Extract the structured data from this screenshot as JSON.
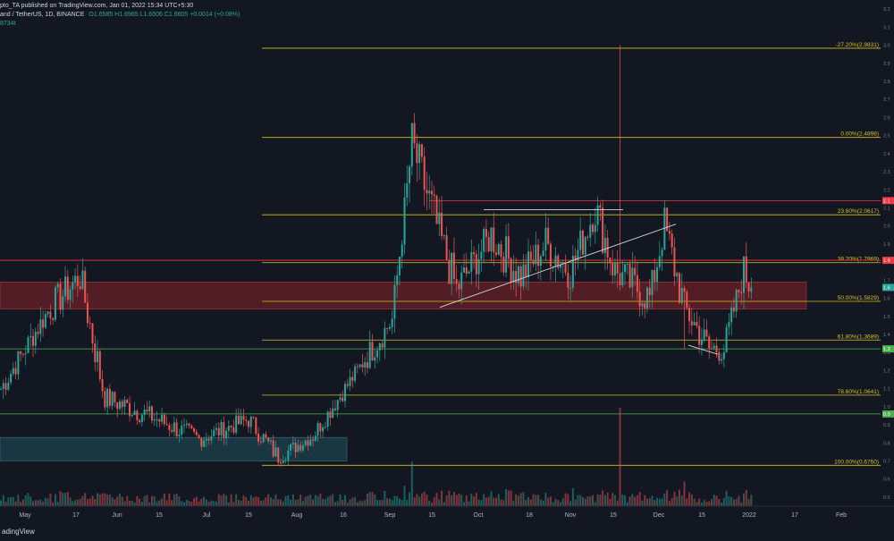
{
  "header": {
    "publisher": "pto_TA published on TradingView.com, Jan 01, 2022 15:34 UTC+5:30",
    "symbol_line": "and / TetherUS, 1D, BINANCE",
    "ohlc": "O1.6585 H1.6965 L1.6506 C1.6605 +0.0014 (+0.08%)",
    "volume": "8734t"
  },
  "footer": {
    "brand": "adingView"
  },
  "colors": {
    "background": "#131722",
    "up": "#26a69a",
    "down": "#ef5350",
    "fib": "#d4c21e",
    "resistance": "#f23645",
    "support": "#4caf50",
    "trendline": "#d1d4dc",
    "zone_red": "#5a1e26",
    "zone_teal": "#1b3a45"
  },
  "chart_data": {
    "type": "candlestick",
    "x_ticks": [
      "May",
      "17",
      "Jun",
      "15",
      "Jul",
      "15",
      "Aug",
      "16",
      "Sep",
      "15",
      "Oct",
      "18",
      "Nov",
      "15",
      "Dec",
      "15",
      "2022",
      "17",
      "Feb"
    ],
    "y_ticks": [
      "3.2",
      "3.1",
      "3.0",
      "2.9",
      "2.8",
      "2.7",
      "2.6",
      "2.5",
      "2.4",
      "2.3",
      "2.2",
      "2.1",
      "2.0",
      "1.9",
      "1.8",
      "1.7",
      "1.6",
      "1.5",
      "1.4",
      "1.3",
      "1.2",
      "1.1",
      "1.0",
      "0.9",
      "0.8",
      "0.7",
      "0.6",
      "0.5"
    ],
    "ylim": [
      0.45,
      3.25
    ],
    "fib_levels": [
      {
        "label": "-27.20%(2.9831)",
        "value": 2.9831
      },
      {
        "label": "0.00%(2.4898)",
        "value": 2.4898
      },
      {
        "label": "23.60%(2.0617)",
        "value": 2.0617
      },
      {
        "label": "38.20%(1.7969)",
        "value": 1.7969
      },
      {
        "label": "50.00%(1.5829)",
        "value": 1.5829
      },
      {
        "label": "61.80%(1.3689)",
        "value": 1.3689
      },
      {
        "label": "78.60%(1.0641)",
        "value": 1.0641
      },
      {
        "label": "100.00%(0.6760)",
        "value": 0.676
      }
    ],
    "horizontal_lines": [
      {
        "value": 2.14,
        "color": "#f23645",
        "tag": "2.1"
      },
      {
        "value": 1.81,
        "color": "#f23645",
        "tag": "1.8"
      },
      {
        "value": 1.32,
        "color": "#4caf50",
        "tag": "1.3"
      },
      {
        "value": 0.96,
        "color": "#4caf50",
        "tag": "0.9"
      }
    ],
    "price_tags": [
      {
        "value": 1.66,
        "color": "#26a69a",
        "tag": "1.6"
      }
    ],
    "zones": [
      {
        "name": "supply-zone",
        "from": 1.54,
        "to": 1.69,
        "color": "#5a1e26"
      },
      {
        "name": "demand-zone",
        "from": 0.7,
        "to": 0.83,
        "color": "#1b3a45"
      }
    ],
    "anchors": [
      {
        "i": 0,
        "v": 1.1
      },
      {
        "i": 20,
        "v": 1.55
      },
      {
        "i": 32,
        "v": 1.72
      },
      {
        "i": 42,
        "v": 1.05
      },
      {
        "i": 60,
        "v": 0.95
      },
      {
        "i": 80,
        "v": 0.82
      },
      {
        "i": 100,
        "v": 0.93
      },
      {
        "i": 112,
        "v": 0.72
      },
      {
        "i": 126,
        "v": 0.84
      },
      {
        "i": 148,
        "v": 1.28
      },
      {
        "i": 158,
        "v": 1.48
      },
      {
        "i": 166,
        "v": 2.45
      },
      {
        "i": 176,
        "v": 2.0
      },
      {
        "i": 184,
        "v": 1.65
      },
      {
        "i": 198,
        "v": 1.95
      },
      {
        "i": 210,
        "v": 1.72
      },
      {
        "i": 220,
        "v": 1.9
      },
      {
        "i": 230,
        "v": 1.75
      },
      {
        "i": 240,
        "v": 2.1
      },
      {
        "i": 248,
        "v": 1.75
      },
      {
        "i": 262,
        "v": 1.6
      },
      {
        "i": 268,
        "v": 2.0
      },
      {
        "i": 276,
        "v": 1.55
      },
      {
        "i": 286,
        "v": 1.32
      },
      {
        "i": 292,
        "v": 1.32
      },
      {
        "i": 300,
        "v": 1.75
      },
      {
        "i": 303,
        "v": 1.66
      }
    ],
    "spikes": [
      {
        "i": 166,
        "high": 2.55,
        "vol": 0.45
      },
      {
        "i": 250,
        "high": 3.0,
        "vol": 1.0
      },
      {
        "i": 276,
        "low": 1.32,
        "vol": 0.25
      }
    ]
  }
}
